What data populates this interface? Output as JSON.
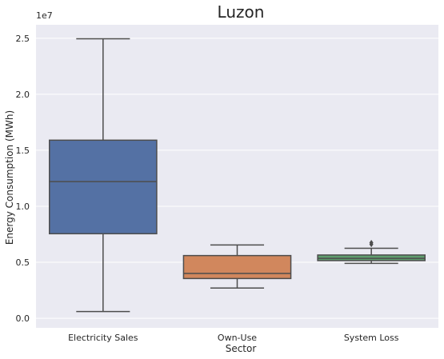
{
  "chart_data": {
    "type": "box",
    "title": "Luzon",
    "xlabel": "Sector",
    "ylabel": "Energy Consumption (MWh)",
    "y_offset_label": "1e7",
    "ylim": [
      -0.085,
      2.62
    ],
    "y_ticks": [
      0.0,
      0.5,
      1.0,
      1.5,
      2.0,
      2.5
    ],
    "y_tick_labels": [
      "0.0",
      "0.5",
      "1.0",
      "1.5",
      "2.0",
      "2.5"
    ],
    "grid": true,
    "categories": [
      "Electricity Sales",
      "Own-Use",
      "System Loss"
    ],
    "boxes": [
      {
        "name": "Electricity Sales",
        "whisker_low": 0.06,
        "q1": 0.755,
        "median": 1.22,
        "q3": 1.59,
        "whisker_high": 2.495,
        "outliers": [],
        "color": "#5471a4"
      },
      {
        "name": "Own-Use",
        "whisker_low": 0.27,
        "q1": 0.355,
        "median": 0.4,
        "q3": 0.56,
        "whisker_high": 0.655,
        "outliers": [],
        "color": "#d1875d"
      },
      {
        "name": "System Loss",
        "whisker_low": 0.49,
        "q1": 0.515,
        "median": 0.535,
        "q3": 0.565,
        "whisker_high": 0.625,
        "outliers": [
          0.66,
          0.675
        ],
        "color": "#5f9e6e"
      }
    ]
  }
}
